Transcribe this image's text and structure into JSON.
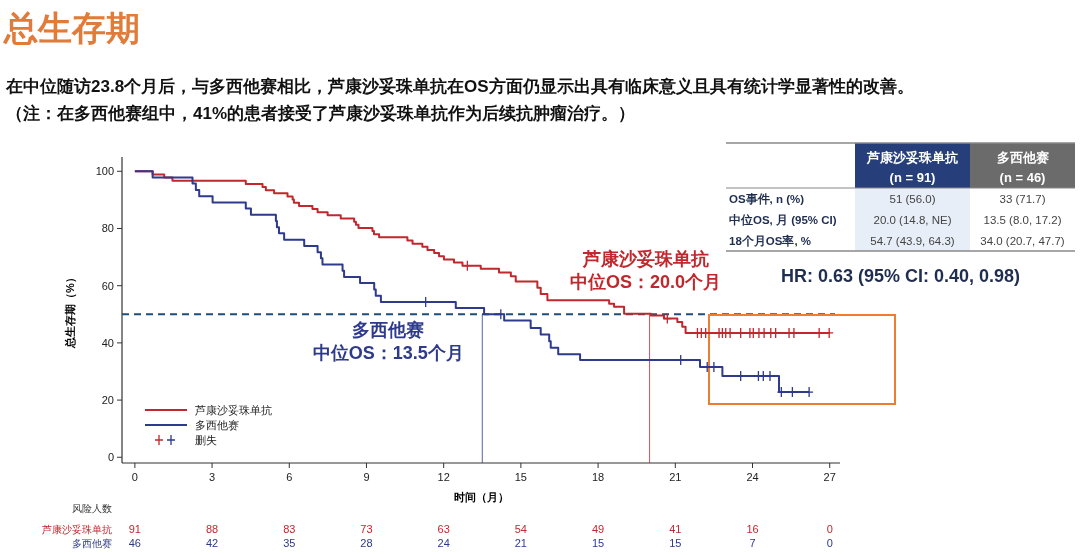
{
  "chart_data": [
    {
      "type": "step",
      "title": "总生存期",
      "subtitle": "在中位随访23.8个月后，与多西他赛相比，芦康沙妥珠单抗在OS方面仍显示出具有临床意义且具有统计学显著性的改善。",
      "xlabel": "时间（月）",
      "ylabel": "总生存期（%）",
      "xlim": [
        -0.5,
        27.4
      ],
      "ylim": [
        -2,
        105
      ],
      "xticks": [
        0,
        3,
        6,
        9,
        12,
        15,
        18,
        21,
        24,
        27
      ],
      "yticks": [
        0,
        20,
        40,
        60,
        80,
        100
      ],
      "legend": "bottom left",
      "grid": false,
      "annotations": [
        "（注：在多西他赛组中，41%的患者接受了芦康沙妥珠单抗作为后续抗肿瘤治疗。）",
        "多西他赛",
        "芦康沙妥珠单抗"
      ],
      "series": [
        {
          "name": "芦康沙妥珠单抗",
          "type": "step",
          "color": "#c0282d",
          "x": [
            0,
            0.69,
            1.14,
            1.46,
            4.31,
            4.96,
            5.09,
            5.41,
            5.93,
            6.13,
            6.18,
            6.38,
            6.9,
            7.1,
            7.49,
            8.0,
            8.52,
            8.59,
            8.69,
            9.23,
            9.29,
            9.49,
            10.59,
            10.79,
            11.17,
            11.37,
            11.63,
            11.82,
            12.01,
            12.4,
            12.73,
            13.44,
            14.15,
            14.61,
            14.8,
            15.64,
            15.77,
            16.03,
            18.43,
            18.62,
            19.01,
            20.05,
            20.56,
            21.08,
            21.27,
            21.4,
            27.0
          ],
          "values": [
            100,
            98.9,
            97.8,
            96.7,
            95.6,
            94.5,
            93.4,
            92.3,
            91.2,
            90.1,
            89.0,
            87.9,
            86.8,
            85.7,
            84.6,
            83.5,
            82.4,
            81.3,
            80.2,
            79.1,
            78.0,
            76.9,
            75.8,
            74.7,
            73.6,
            72.5,
            71.4,
            70.3,
            69.2,
            68.1,
            67.0,
            65.9,
            64.6,
            63.3,
            61.5,
            59.3,
            57.1,
            54.9,
            53.7,
            52.6,
            50.2,
            49.6,
            48.5,
            47.3,
            45.6,
            43.5,
            43.5
          ]
        },
        {
          "name": "多西他赛",
          "type": "step",
          "color": "#2e3a8c",
          "x": [
            0,
            0.69,
            2.24,
            2.37,
            2.5,
            3.02,
            4.31,
            4.51,
            5.48,
            5.52,
            5.6,
            5.8,
            6.58,
            7.1,
            7.23,
            7.29,
            8.07,
            8.13,
            8.75,
            9.3,
            9.36,
            9.56,
            12.47,
            13.57,
            14.35,
            15.38,
            15.77,
            16.1,
            16.16,
            16.45,
            17.3,
            21.96,
            22.83,
            25.03,
            26.2
          ],
          "values": [
            100,
            97.8,
            95.7,
            93.5,
            91.3,
            89.1,
            87.0,
            84.8,
            82.6,
            80.4,
            78.3,
            76.1,
            73.9,
            71.7,
            69.6,
            67.4,
            65.2,
            63.0,
            60.9,
            58.7,
            56.5,
            54.3,
            52.2,
            50.0,
            47.8,
            45.2,
            42.9,
            40.6,
            38.3,
            36.0,
            34.0,
            31.6,
            28.4,
            22.8,
            22.8
          ]
        },
        {
          "name": "删失",
          "type": "scatter",
          "marker": "cross",
          "x": [
            12.92,
            20.69,
            21.86,
            22.01,
            22.18,
            22.7,
            22.83,
            22.96,
            23.13,
            23.54,
            23.9,
            24.03,
            24.25,
            24.45,
            24.71,
            24.9,
            25.42,
            25.61,
            26.59,
            26.98,
            11.3,
            14.22,
            21.21,
            22.24,
            22.5,
            23.54,
            24.23,
            24.42,
            24.68,
            25.12,
            25.55,
            26.2
          ],
          "values": [
            67.0,
            48.5,
            43.5,
            43.5,
            43.5,
            43.5,
            43.5,
            43.5,
            43.5,
            43.5,
            43.5,
            43.5,
            43.5,
            43.5,
            43.5,
            43.5,
            43.5,
            43.5,
            43.5,
            43.5,
            54.3,
            50.0,
            34.0,
            31.6,
            31.6,
            28.4,
            28.4,
            28.4,
            28.4,
            22.8,
            22.8,
            22.8
          ],
          "colors": [
            "#c0282d",
            "#c0282d",
            "#c0282d",
            "#c0282d",
            "#c0282d",
            "#c0282d",
            "#c0282d",
            "#c0282d",
            "#c0282d",
            "#c0282d",
            "#c0282d",
            "#c0282d",
            "#c0282d",
            "#c0282d",
            "#c0282d",
            "#c0282d",
            "#c0282d",
            "#c0282d",
            "#c0282d",
            "#c0282d",
            "#2e3a8c",
            "#2e3a8c",
            "#2e3a8c",
            "#2e3a8c",
            "#2e3a8c",
            "#2e3a8c",
            "#2e3a8c",
            "#2e3a8c",
            "#2e3a8c",
            "#2e3a8c",
            "#2e3a8c",
            "#2e3a8c"
          ]
        }
      ],
      "ref_lines": [
        {
          "axis": "y",
          "value": 50,
          "color": "#1f4e79",
          "line_style": "dashed"
        },
        {
          "axis": "x",
          "value": 13.5,
          "color": "#2e3a8c",
          "line_style": "solid",
          "label": "中位OS：13.5个月"
        },
        {
          "axis": "x",
          "value": 20.0,
          "color": "#c0282d",
          "line_style": "solid",
          "label": "中位OS：20.0个月"
        }
      ]
    },
    {
      "type": "other",
      "categories": [
        "芦康沙妥珠单抗\n(n = 91)",
        "多西他赛\n(n = 46)"
      ],
      "y_categories": [
        "OS事件, n (%)",
        "中位OS, 月 (95% CI)",
        "18个月OS率, %"
      ],
      "cell_labels": [
        [
          "51 (56.0)",
          "33 (71.7)"
        ],
        [
          "20.0 (14.8, NE)",
          "13.5 (8.0, 17.2)"
        ],
        [
          "54.7 (43.9, 64.3)",
          "34.0 (20.7, 47.7)"
        ]
      ],
      "annotations": [
        "HR: 0.63 (95% CI: 0.40, 0.98)"
      ]
    },
    {
      "type": "other",
      "title": "风险人数",
      "categories": [
        null,
        null,
        null,
        null,
        null,
        null,
        null,
        null,
        null,
        null
      ],
      "y_categories": [
        "芦康沙妥珠单抗",
        "多西他赛"
      ],
      "cell_labels": [
        [
          "91",
          "88",
          "83",
          "73",
          "63",
          "54",
          "49",
          "41",
          "16",
          "0"
        ],
        [
          "46",
          "42",
          "35",
          "28",
          "24",
          "21",
          "15",
          "15",
          "7",
          "0"
        ]
      ]
    }
  ]
}
